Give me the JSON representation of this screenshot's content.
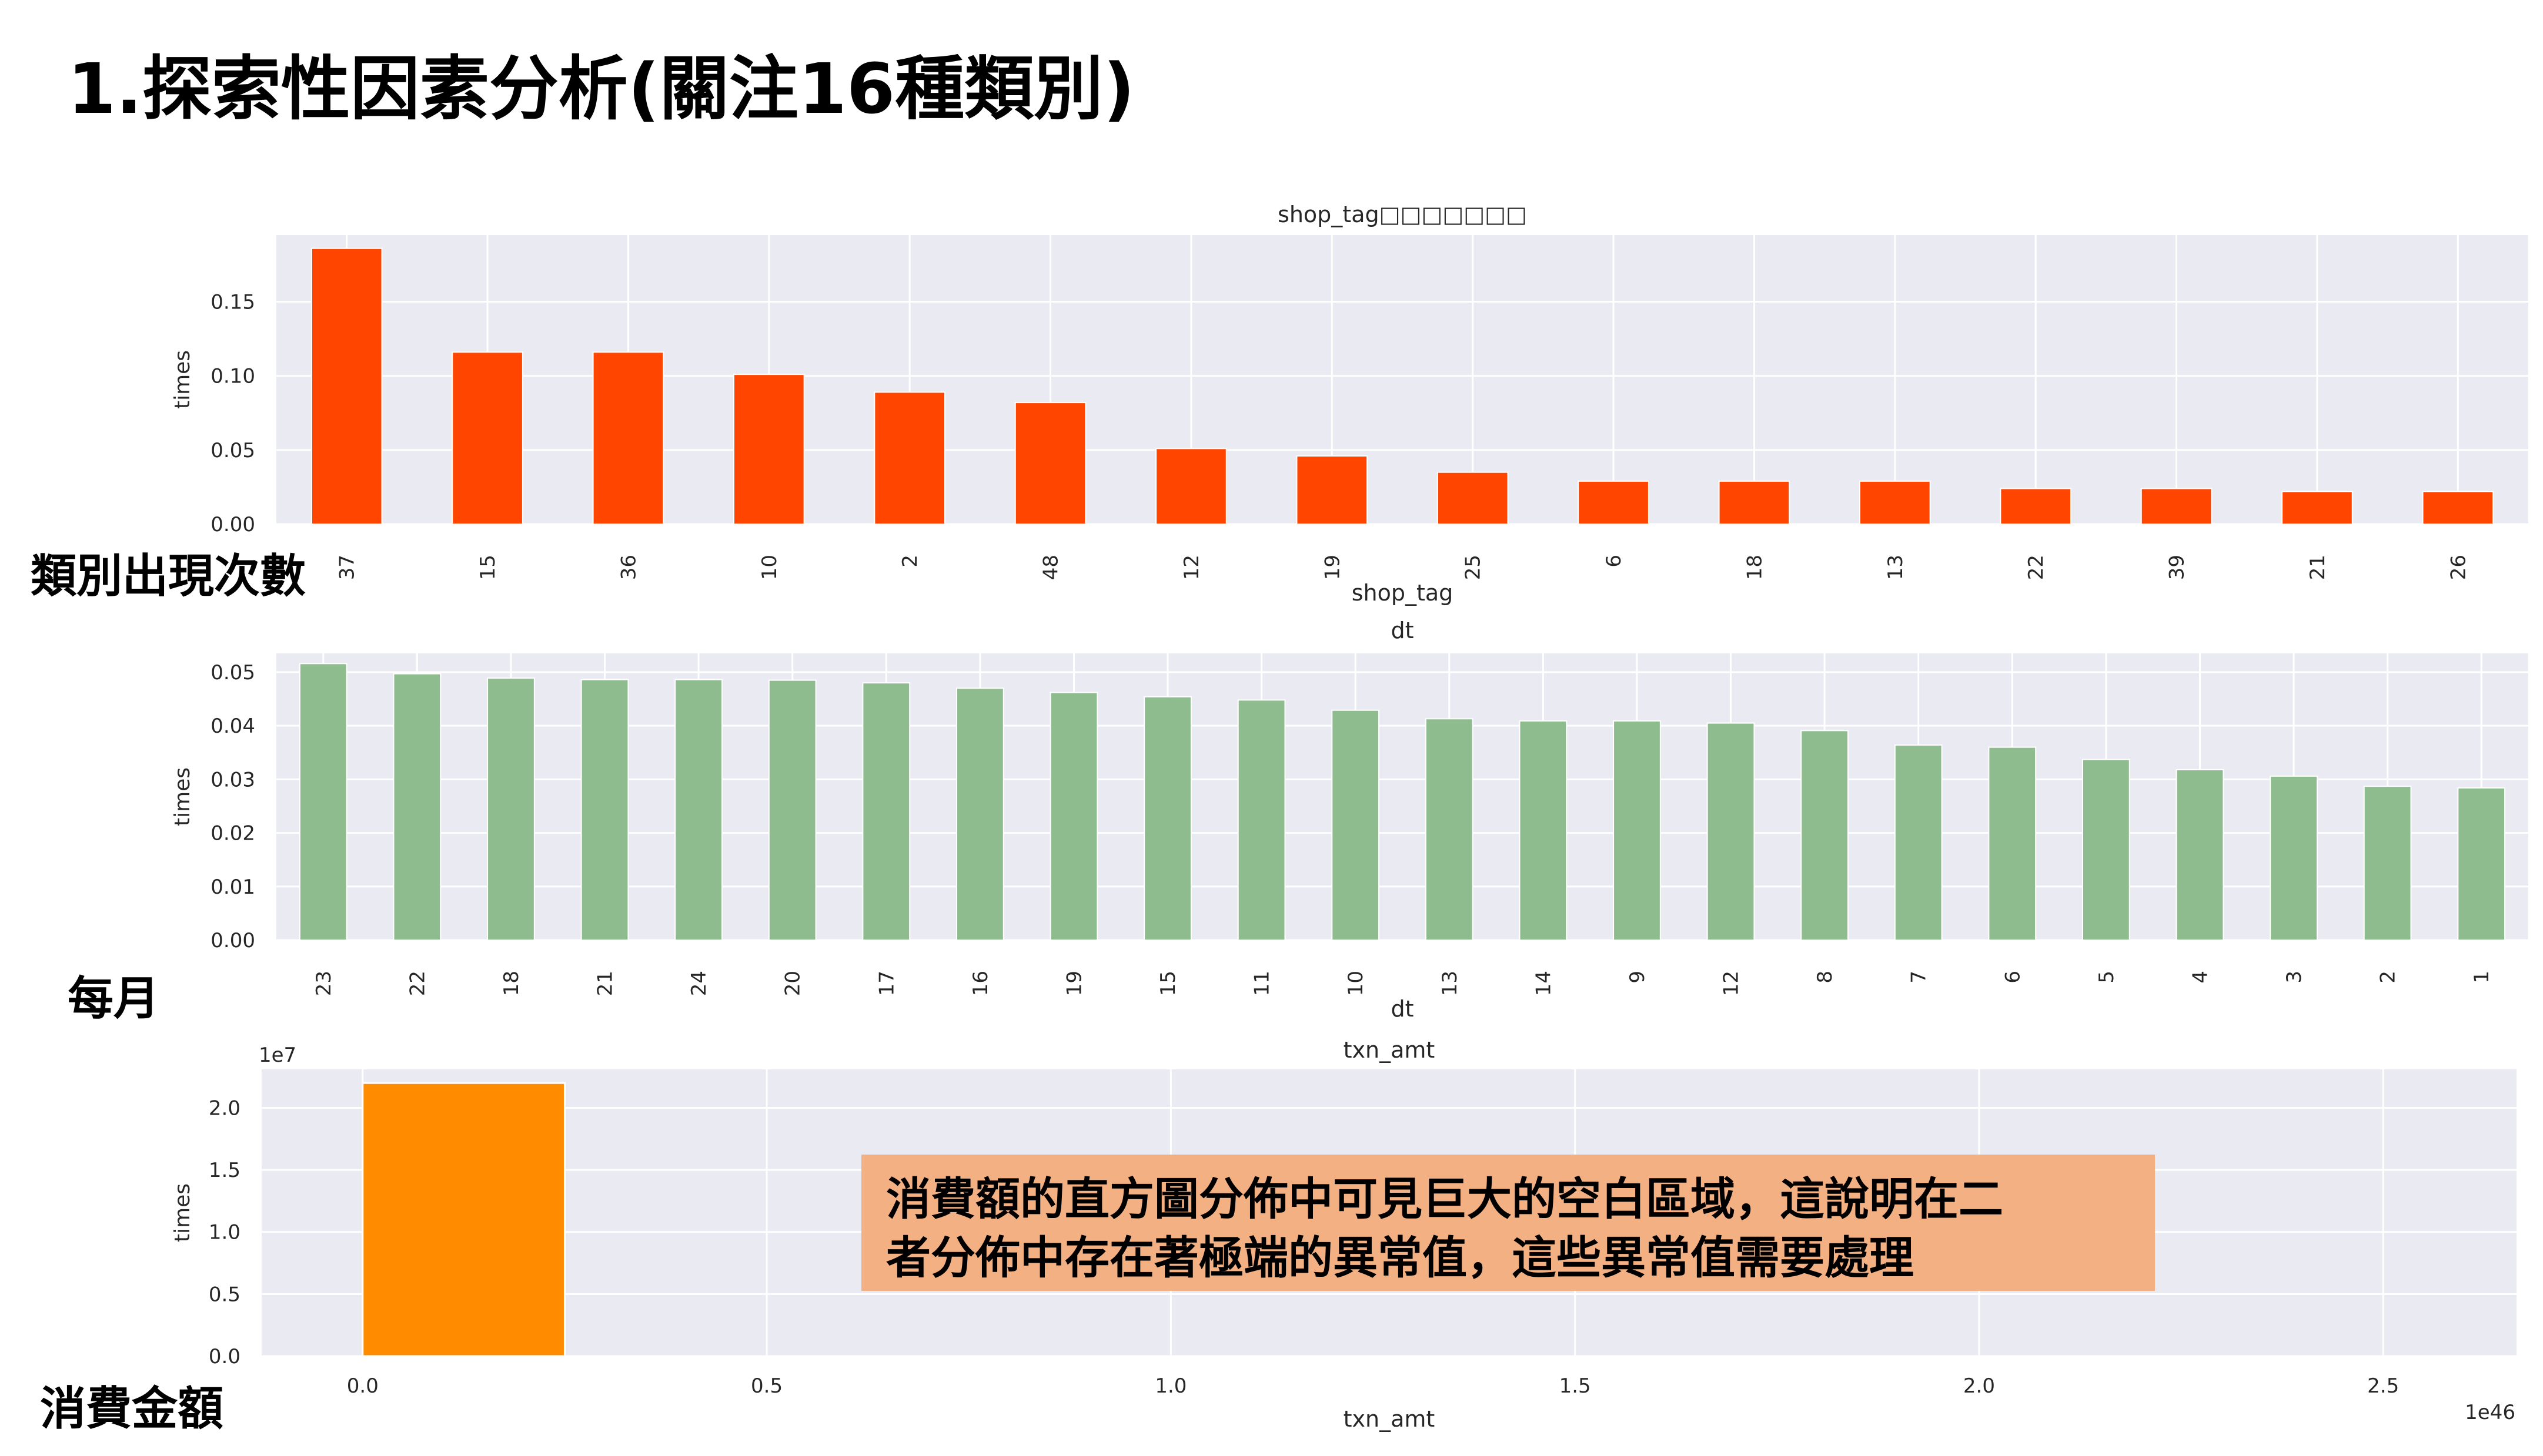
{
  "slide": {
    "title": "1.探索性因素分析(關注16種類別)",
    "label_shop": "類別出現次數",
    "label_month": "每月",
    "label_amount": "消費金額",
    "note_line1": "消費額的直方圖分佈中可見巨大的空白區域，這說明在二",
    "note_line2": "者分佈中存在著極端的異常值，這些異常值需要處理"
  },
  "colors": {
    "shop_bars": "#ff4500",
    "month_bars": "#8fbc8f",
    "amount_bars": "#ff8c00",
    "plot_bg": "#eaeaf2",
    "note_bg": "#f3b083"
  },
  "chart_data": [
    {
      "type": "bar",
      "title": "shop_tag□□□□□□□",
      "xlabel": "shop_tag",
      "ylabel": "times",
      "categories": [
        "37",
        "15",
        "36",
        "10",
        "2",
        "48",
        "12",
        "19",
        "25",
        "6",
        "18",
        "13",
        "22",
        "39",
        "21",
        "26"
      ],
      "values": [
        0.186,
        0.116,
        0.116,
        0.101,
        0.089,
        0.082,
        0.051,
        0.046,
        0.035,
        0.029,
        0.029,
        0.029,
        0.024,
        0.024,
        0.022,
        0.022
      ],
      "ylim": [
        0,
        0.195
      ],
      "yticks": [
        "0.00",
        "0.05",
        "0.10",
        "0.15"
      ],
      "grid": true
    },
    {
      "type": "bar",
      "title": "dt",
      "xlabel": "dt",
      "ylabel": "times",
      "categories": [
        "23",
        "22",
        "18",
        "21",
        "24",
        "20",
        "17",
        "16",
        "19",
        "15",
        "11",
        "10",
        "13",
        "14",
        "9",
        "12",
        "8",
        "7",
        "6",
        "5",
        "4",
        "3",
        "2",
        "1"
      ],
      "values": [
        0.0516,
        0.0497,
        0.0489,
        0.0486,
        0.0486,
        0.0485,
        0.048,
        0.047,
        0.0462,
        0.0454,
        0.0448,
        0.0429,
        0.0413,
        0.0409,
        0.0409,
        0.0405,
        0.0391,
        0.0364,
        0.036,
        0.0337,
        0.0318,
        0.0306,
        0.0287,
        0.0284
      ],
      "ylim": [
        0,
        0.0535
      ],
      "yticks": [
        "0.00",
        "0.01",
        "0.02",
        "0.03",
        "0.04",
        "0.05"
      ],
      "grid": true
    },
    {
      "type": "bar",
      "title": "txn_amt",
      "xlabel": "txn_amt",
      "ylabel": "times",
      "y_offset_label": "1e7",
      "x_offset_label": "1e46",
      "xticks": [
        "0.0",
        "0.5",
        "1.0",
        "1.5",
        "2.0",
        "2.5"
      ],
      "yticks": [
        "0.0",
        "0.5",
        "1.0",
        "1.5",
        "2.0"
      ],
      "bins": [
        {
          "x0": 0.0,
          "x1": 0.25,
          "value": 2.2
        }
      ],
      "xlim": [
        -0.125,
        2.665
      ],
      "ylim": [
        0,
        2.31
      ],
      "grid": true
    }
  ]
}
